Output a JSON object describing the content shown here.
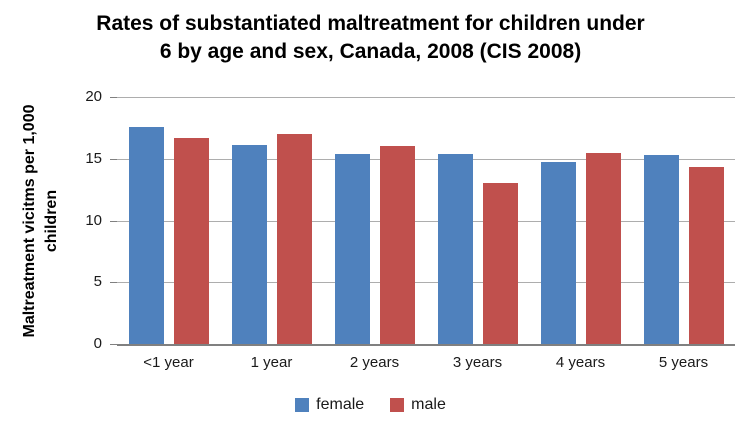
{
  "chart_data": {
    "type": "bar",
    "title": "Rates of substantiated maltreatment for children under 6 by age and sex, Canada, 2008 (CIS 2008)",
    "title_lines": [
      "Rates of substantiated maltreatment for children under",
      "6 by age and sex, Canada, 2008 (CIS 2008)"
    ],
    "ylabel": "Maltreatment vicitms per 1,000 children",
    "ylabel_lines": [
      "Maltreatment vicitms per 1,000",
      "children"
    ],
    "xlabel": "",
    "categories": [
      "<1 year",
      "1 year",
      "2 years",
      "3 years",
      "4 years",
      "5 years"
    ],
    "series": [
      {
        "name": "female",
        "color": "#4F81BD",
        "values": [
          17.6,
          16.1,
          15.4,
          15.4,
          14.7,
          15.3
        ]
      },
      {
        "name": "male",
        "color": "#C0504D",
        "values": [
          16.7,
          17.0,
          16.0,
          13.0,
          15.5,
          14.3
        ]
      }
    ],
    "ylim": [
      0,
      20
    ],
    "y_ticks": [
      0,
      5,
      10,
      15,
      20
    ],
    "grid": true,
    "legend_position": "bottom"
  },
  "colors": {
    "female_bar": "#4F81BD",
    "male_bar": "#C0504D",
    "gridline": "#ADADAD",
    "axis_line": "#808080",
    "text": "#1A1A1A",
    "background": "#FFFFFF"
  }
}
